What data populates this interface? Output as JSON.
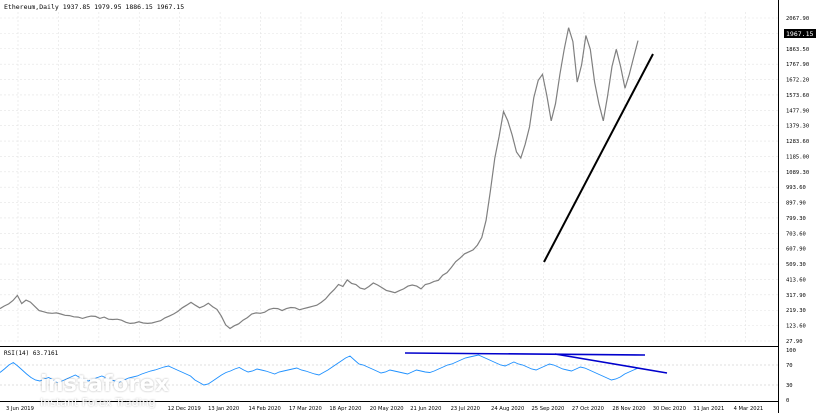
{
  "header": {
    "symbol": "Ethereum,Daily",
    "ohlc": "1937.85 1979.95 1886.15 1967.15"
  },
  "rsi_header": "RSI(14) 63.7161",
  "current_price_label": "1967.15",
  "colors": {
    "price_series": "#808080",
    "grid": "#e3e3e3",
    "trendline_main": "#000000",
    "rsi_line": "#1e90ff",
    "rsi_trendline": "#0000cc",
    "price_badge_bg": "#000000",
    "price_badge_fg": "#ffffff",
    "watermark": "#ffffff"
  },
  "watermark": {
    "brand": "instaforex",
    "tagline": "Instant Forex Trading",
    "logo_icon": "instaforex-logo-icon"
  },
  "chart_data": [
    {
      "type": "line",
      "name": "price",
      "y_ticks": [
        "2067.90",
        "1963.50",
        "1863.50",
        "1767.90",
        "1672.20",
        "1573.60",
        "1477.90",
        "1379.30",
        "1283.60",
        "1185.00",
        "1089.30",
        "993.60",
        "897.90",
        "799.30",
        "703.60",
        "607.90",
        "509.30",
        "413.60",
        "317.90",
        "219.30",
        "123.60",
        "27.90"
      ],
      "x_ticks": [
        "3 Jun 2019",
        "",
        "",
        "",
        "12 Dec 2019",
        "13 Jan 2020",
        "14 Feb 2020",
        "17 Mar 2020",
        "18 Apr 2020",
        "20 May 2020",
        "21 Jun 2020",
        "23 Jul 2020",
        "24 Aug 2020",
        "25 Sep 2020",
        "27 Oct 2020",
        "28 Nov 2020",
        "30 Dec 2020",
        "31 Jan 2021",
        "4 Mar 2021"
      ],
      "ylim": [
        27.9,
        2120
      ],
      "y": [
        235,
        255,
        265,
        290,
        320,
        270,
        290,
        280,
        250,
        225,
        215,
        210,
        205,
        210,
        200,
        195,
        190,
        185,
        180,
        175,
        180,
        190,
        185,
        175,
        180,
        170,
        165,
        170,
        160,
        150,
        140,
        145,
        150,
        145,
        140,
        145,
        150,
        160,
        175,
        190,
        200,
        220,
        240,
        260,
        275,
        260,
        240,
        255,
        270,
        250,
        230,
        190,
        130,
        110,
        125,
        140,
        160,
        180,
        200,
        210,
        205,
        215,
        230,
        240,
        235,
        225,
        235,
        245,
        240,
        230,
        235,
        245,
        250,
        260,
        275,
        300,
        330,
        360,
        390,
        380,
        420,
        400,
        390,
        370,
        360,
        380,
        400,
        390,
        370,
        355,
        345,
        340,
        350,
        365,
        380,
        390,
        380,
        365,
        390,
        400,
        410,
        420,
        450,
        470,
        500,
        540,
        560,
        590,
        600,
        620,
        640,
        700,
        800,
        1000,
        1200,
        1350,
        1500,
        1450,
        1350,
        1250,
        1200,
        1300,
        1400,
        1600,
        1700,
        1750,
        1600,
        1450,
        1550,
        1750,
        1900,
        2050,
        1950,
        1700,
        1800,
        2000,
        1900,
        1700,
        1550,
        1450,
        1600,
        1800,
        1900,
        1800,
        1650,
        1750,
        1850,
        1967
      ],
      "annotations": [
        "ascending support trendline"
      ]
    },
    {
      "type": "line",
      "name": "RSI(14)",
      "y_ticks": [
        "100",
        "70",
        "30",
        "0"
      ],
      "ylim": [
        0,
        100
      ],
      "y": [
        55,
        62,
        70,
        75,
        68,
        60,
        52,
        45,
        40,
        38,
        42,
        45,
        40,
        35,
        38,
        42,
        46,
        50,
        45,
        40,
        38,
        42,
        45,
        48,
        44,
        40,
        38,
        36,
        40,
        44,
        46,
        48,
        52,
        55,
        58,
        60,
        63,
        66,
        68,
        64,
        60,
        56,
        52,
        48,
        40,
        35,
        30,
        32,
        38,
        44,
        50,
        55,
        58,
        62,
        65,
        60,
        56,
        58,
        62,
        60,
        58,
        55,
        52,
        56,
        58,
        60,
        62,
        64,
        60,
        58,
        55,
        52,
        50,
        55,
        60,
        66,
        72,
        78,
        84,
        88,
        80,
        72,
        70,
        66,
        62,
        58,
        54,
        56,
        60,
        58,
        56,
        54,
        52,
        56,
        60,
        58,
        56,
        55,
        58,
        62,
        66,
        70,
        72,
        76,
        80,
        84,
        86,
        88,
        90,
        86,
        82,
        78,
        74,
        70,
        68,
        72,
        76,
        72,
        70,
        66,
        62,
        60,
        64,
        68,
        72,
        70,
        66,
        62,
        60,
        58,
        62,
        66,
        64,
        60,
        56,
        52,
        48,
        44,
        40,
        42,
        46,
        52,
        56,
        60,
        63.7
      ],
      "annotations": [
        "descending RSI trendline",
        "horizontal RSI resistance line"
      ]
    }
  ]
}
